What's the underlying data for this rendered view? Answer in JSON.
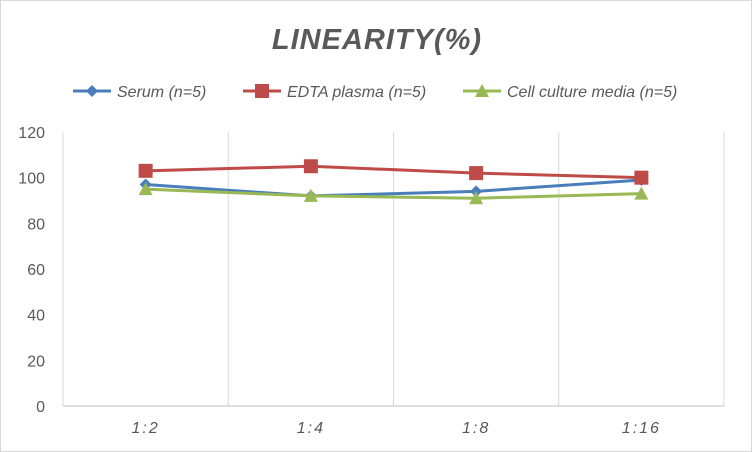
{
  "chart_data": {
    "type": "line",
    "title": "LINEARITY(%)",
    "categories": [
      "1:2",
      "1:4",
      "1:8",
      "1:16"
    ],
    "ylim": [
      0,
      120
    ],
    "yticks": [
      0,
      20,
      40,
      60,
      80,
      100,
      120
    ],
    "grid": "vertical lines between categories",
    "legend": "top",
    "series": [
      {
        "name": "Serum (n=5)",
        "color": "#4a7ebb",
        "marker": "diamond",
        "values": [
          97,
          92,
          94,
          99
        ]
      },
      {
        "name": "EDTA plasma (n=5)",
        "color": "#be4b48",
        "marker": "square",
        "values": [
          103,
          105,
          102,
          100
        ]
      },
      {
        "name": "Cell culture media (n=5)",
        "color": "#98b954",
        "marker": "triangle",
        "values": [
          95,
          92,
          91,
          93
        ]
      }
    ]
  }
}
